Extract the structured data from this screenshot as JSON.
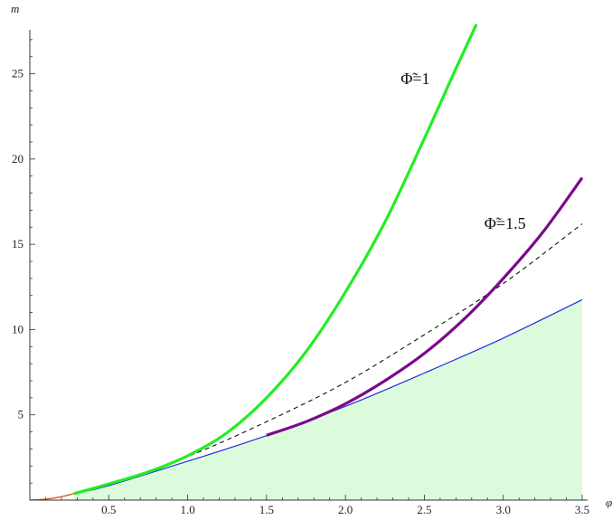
{
  "chart_data": {
    "type": "line",
    "xlabel": "φ",
    "ylabel": "m",
    "xlim": [
      0,
      3.5
    ],
    "ylim": [
      0,
      28
    ],
    "x_ticks": [
      "0.5",
      "1.0",
      "1.5",
      "2.0",
      "2.5",
      "3.0",
      "3.5"
    ],
    "y_ticks": [
      "5",
      "10",
      "15",
      "20",
      "25"
    ],
    "x_tick_values": [
      0.5,
      1.0,
      1.5,
      2.0,
      2.5,
      3.0,
      3.5
    ],
    "y_tick_values": [
      5,
      10,
      15,
      20,
      25
    ],
    "grid": false,
    "legend": "none",
    "annotations": [
      {
        "text": "Φ̃=1",
        "x": 2.35,
        "y": 24.4
      },
      {
        "text": "Φ̃=1.5",
        "x": 2.88,
        "y": 15.9
      }
    ],
    "shaded_region": {
      "fill": "#dcfadc",
      "description": "area below blue curve",
      "x": [
        0.28,
        0.5,
        1.0,
        1.5,
        2.0,
        2.5,
        3.0,
        3.5
      ],
      "y": [
        0.38,
        0.85,
        2.28,
        3.78,
        5.5,
        7.45,
        9.5,
        11.75
      ]
    },
    "series": [
      {
        "color": "#d24a1a",
        "width": 1.2,
        "dash": "",
        "x": [
          0.0,
          0.07,
          0.14,
          0.21,
          0.28
        ],
        "y": [
          0.0,
          0.03,
          0.1,
          0.22,
          0.38
        ]
      },
      {
        "color": "#1f2fd6",
        "width": 1.2,
        "dash": "",
        "x": [
          0.28,
          0.5,
          1.0,
          1.5,
          2.0,
          2.5,
          3.0,
          3.5
        ],
        "y": [
          0.38,
          0.85,
          2.28,
          3.78,
          5.5,
          7.45,
          9.5,
          11.75
        ]
      },
      {
        "color": "#111111",
        "width": 1.1,
        "dash": "5,4",
        "x": [
          0.28,
          0.5,
          1.0,
          1.5,
          2.0,
          2.5,
          3.0,
          3.5
        ],
        "y": [
          0.38,
          0.9,
          2.55,
          4.6,
          6.9,
          9.7,
          12.7,
          16.2
        ]
      },
      {
        "color": "#22ee22",
        "width": 3.2,
        "dash": "",
        "x": [
          0.28,
          0.5,
          0.75,
          1.0,
          1.25,
          1.5,
          1.75,
          2.0,
          2.25,
          2.5,
          2.7,
          2.83
        ],
        "y": [
          0.38,
          0.95,
          1.65,
          2.6,
          3.95,
          6.0,
          8.7,
          12.2,
          16.3,
          21.2,
          25.3,
          27.9
        ]
      },
      {
        "color": "#7a0a8a",
        "width": 3.2,
        "dash": "",
        "x": [
          1.5,
          1.75,
          2.0,
          2.25,
          2.5,
          2.75,
          3.0,
          3.25,
          3.5
        ],
        "y": [
          3.8,
          4.6,
          5.65,
          7.0,
          8.6,
          10.6,
          13.0,
          15.7,
          18.9
        ]
      }
    ]
  }
}
